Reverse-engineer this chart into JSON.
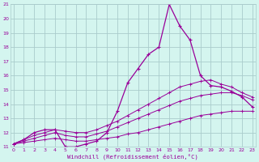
{
  "xlabel": "Windchill (Refroidissement éolien,°C)",
  "background_color": "#d4f5ef",
  "grid_color": "#aacccc",
  "line_color": "#990099",
  "x_hours": [
    0,
    1,
    2,
    3,
    4,
    5,
    6,
    7,
    8,
    9,
    10,
    11,
    12,
    13,
    14,
    15,
    16,
    17,
    18,
    19,
    20,
    21,
    22,
    23
  ],
  "temp_line": [
    11.2,
    11.5,
    12.0,
    12.2,
    12.2,
    11.0,
    11.0,
    11.2,
    11.4,
    12.0,
    13.5,
    15.5,
    16.5,
    17.5,
    18.0,
    21.0,
    19.5,
    18.5,
    16.0,
    15.3,
    15.2,
    14.9,
    14.5,
    13.8
  ],
  "max_line": [
    11.2,
    11.5,
    11.8,
    12.0,
    12.2,
    12.1,
    12.0,
    12.0,
    12.2,
    12.5,
    12.8,
    13.2,
    13.6,
    14.0,
    14.4,
    14.8,
    15.2,
    15.4,
    15.6,
    15.7,
    15.4,
    15.2,
    14.8,
    14.5
  ],
  "avg_line": [
    11.2,
    11.4,
    11.6,
    11.8,
    12.0,
    11.8,
    11.7,
    11.7,
    11.9,
    12.1,
    12.4,
    12.7,
    13.0,
    13.3,
    13.6,
    13.9,
    14.2,
    14.4,
    14.6,
    14.7,
    14.8,
    14.8,
    14.6,
    14.3
  ],
  "min_line": [
    11.2,
    11.3,
    11.4,
    11.5,
    11.6,
    11.5,
    11.4,
    11.4,
    11.5,
    11.6,
    11.7,
    11.9,
    12.0,
    12.2,
    12.4,
    12.6,
    12.8,
    13.0,
    13.2,
    13.3,
    13.4,
    13.5,
    13.5,
    13.5
  ],
  "ylim": [
    11,
    21
  ],
  "yticks": [
    11,
    12,
    13,
    14,
    15,
    16,
    17,
    18,
    19,
    20,
    21
  ],
  "xticks": [
    0,
    1,
    2,
    3,
    4,
    5,
    6,
    7,
    8,
    9,
    10,
    11,
    12,
    13,
    14,
    15,
    16,
    17,
    18,
    19,
    20,
    21,
    22,
    23
  ]
}
